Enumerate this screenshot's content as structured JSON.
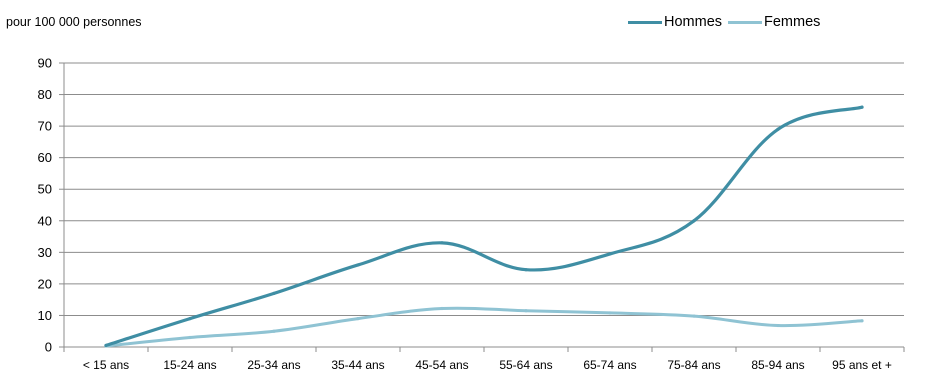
{
  "chart_data": {
    "type": "line",
    "ylabel_note": "pour 100 000 personnes",
    "categories": [
      "< 15 ans",
      "15-24 ans",
      "25-34  ans",
      "35-44  ans",
      "45-54 ans",
      "55-64 ans",
      "65-74 ans",
      "75-84 ans",
      "85-94 ans",
      "95 ans et +"
    ],
    "ylim": [
      0,
      90
    ],
    "yticks": [
      0,
      10,
      20,
      30,
      40,
      50,
      60,
      70,
      80,
      90
    ],
    "grid": true,
    "legend_position": "top-right",
    "series": [
      {
        "name": "Hommes",
        "color": "#3f8ea4",
        "values": [
          0.5,
          9,
          17,
          26,
          33,
          24.5,
          29.5,
          40,
          69,
          76
        ]
      },
      {
        "name": "Femmes",
        "color": "#8fc3d3",
        "values": [
          0.3,
          3,
          5,
          9,
          12.2,
          11.5,
          10.8,
          9.8,
          6.8,
          8.3
        ]
      }
    ]
  }
}
